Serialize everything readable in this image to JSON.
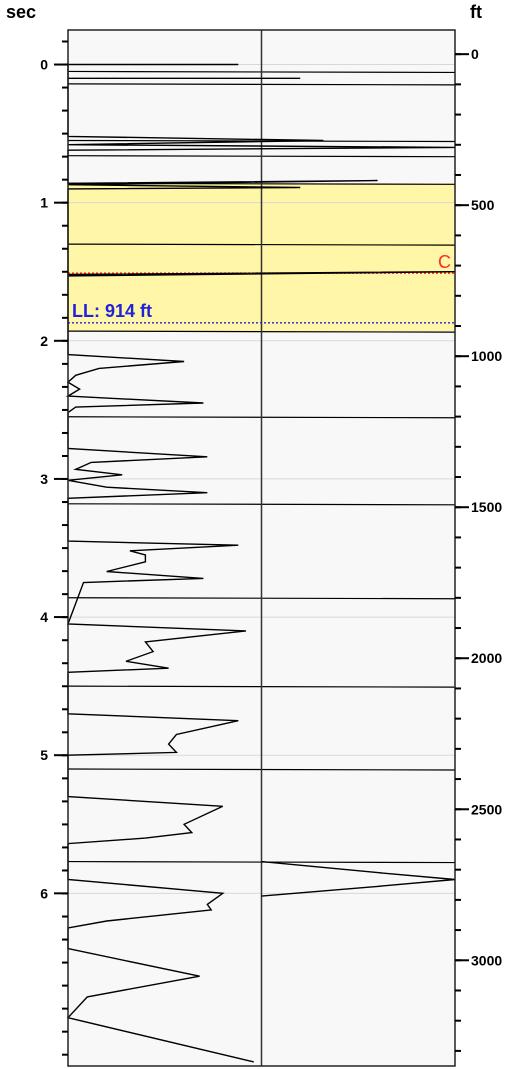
{
  "chart_data": {
    "type": "line",
    "title": "",
    "left_axis": {
      "label": "sec",
      "range": [
        -0.25,
        7.25
      ],
      "tick_labels": [
        "0",
        "1",
        "2",
        "3",
        "4",
        "5",
        "6"
      ],
      "minor_step": 0.1667
    },
    "right_axis": {
      "label": "ft",
      "range": [
        -80,
        3350
      ],
      "tick_labels": [
        "0",
        "500",
        "1000",
        "1500",
        "2000",
        "2500",
        "3000"
      ],
      "minor_step": 100
    },
    "grid": true,
    "highlight_band": {
      "from_sec": 0.86,
      "to_sec": 1.93,
      "color": "#fff6a8"
    },
    "markers": [
      {
        "label": "C",
        "at_sec": 1.51,
        "color": "#ff2a2a"
      },
      {
        "label": "LL: 914 ft",
        "at_sec": 1.87,
        "color": "#2222dd"
      }
    ],
    "horizontal_lines_sec": [
      0.05,
      0.14,
      0.55,
      0.66,
      0.86,
      1.3,
      1.93,
      2.55,
      3.18,
      3.86,
      4.5,
      5.1,
      5.77
    ],
    "trace": {
      "name": "",
      "color": "#000000",
      "points_sec": [
        [
          0.0,
          0.44
        ],
        [
          0.0,
          0.0
        ],
        [
          0.1,
          0.0
        ],
        [
          0.1,
          0.6
        ],
        [
          0.1,
          0.0
        ],
        [
          0.52,
          0.0
        ],
        [
          0.55,
          0.66
        ],
        [
          0.58,
          0.0
        ],
        [
          0.6,
          1.0
        ],
        [
          0.62,
          0.0
        ],
        [
          0.86,
          0.0
        ],
        [
          0.84,
          0.8
        ],
        [
          0.87,
          0.0
        ],
        [
          0.89,
          0.6
        ],
        [
          0.9,
          0.0
        ],
        [
          1.52,
          0.0
        ],
        [
          1.5,
          1.0
        ],
        [
          1.53,
          0.0
        ],
        [
          2.1,
          0.0
        ],
        [
          2.15,
          0.3
        ],
        [
          2.2,
          0.08
        ],
        [
          2.25,
          0.02
        ],
        [
          2.3,
          0.0
        ],
        [
          2.35,
          0.03
        ],
        [
          2.4,
          0.0
        ],
        [
          2.45,
          0.35
        ],
        [
          2.48,
          0.02
        ],
        [
          2.52,
          0.0
        ],
        [
          2.78,
          0.0
        ],
        [
          2.84,
          0.36
        ],
        [
          2.88,
          0.06
        ],
        [
          2.93,
          0.02
        ],
        [
          2.97,
          0.14
        ],
        [
          3.01,
          0.0
        ],
        [
          3.06,
          0.1
        ],
        [
          3.1,
          0.36
        ],
        [
          3.14,
          0.0
        ],
        [
          3.45,
          0.0
        ],
        [
          3.48,
          0.44
        ],
        [
          3.52,
          0.16
        ],
        [
          3.55,
          0.2
        ],
        [
          3.6,
          0.2
        ],
        [
          3.67,
          0.1
        ],
        [
          3.72,
          0.35
        ],
        [
          3.75,
          0.04
        ],
        [
          4.05,
          0.0
        ],
        [
          4.1,
          0.46
        ],
        [
          4.18,
          0.2
        ],
        [
          4.25,
          0.22
        ],
        [
          4.32,
          0.15
        ],
        [
          4.37,
          0.26
        ],
        [
          4.4,
          0.0
        ],
        [
          4.7,
          0.0
        ],
        [
          4.75,
          0.44
        ],
        [
          4.85,
          0.28
        ],
        [
          4.92,
          0.26
        ],
        [
          4.98,
          0.28
        ],
        [
          5.0,
          0.0
        ],
        [
          5.3,
          0.0
        ],
        [
          5.37,
          0.4
        ],
        [
          5.5,
          0.3
        ],
        [
          5.56,
          0.32
        ],
        [
          5.6,
          0.2
        ],
        [
          5.64,
          0.0
        ],
        [
          5.9,
          0.0
        ],
        [
          6.0,
          0.4
        ],
        [
          6.08,
          0.36
        ],
        [
          6.12,
          0.37
        ],
        [
          6.2,
          0.1
        ],
        [
          6.25,
          0.0
        ],
        [
          6.4,
          0.0
        ],
        [
          6.6,
          0.34
        ],
        [
          6.75,
          0.05
        ],
        [
          6.9,
          0.0
        ],
        [
          7.22,
          0.48
        ]
      ],
      "overflow_sec": [
        [
          5.77,
          0.5
        ],
        [
          5.85,
          0.8
        ],
        [
          5.9,
          1.0
        ],
        [
          5.95,
          0.8
        ],
        [
          6.02,
          0.5
        ]
      ]
    }
  }
}
